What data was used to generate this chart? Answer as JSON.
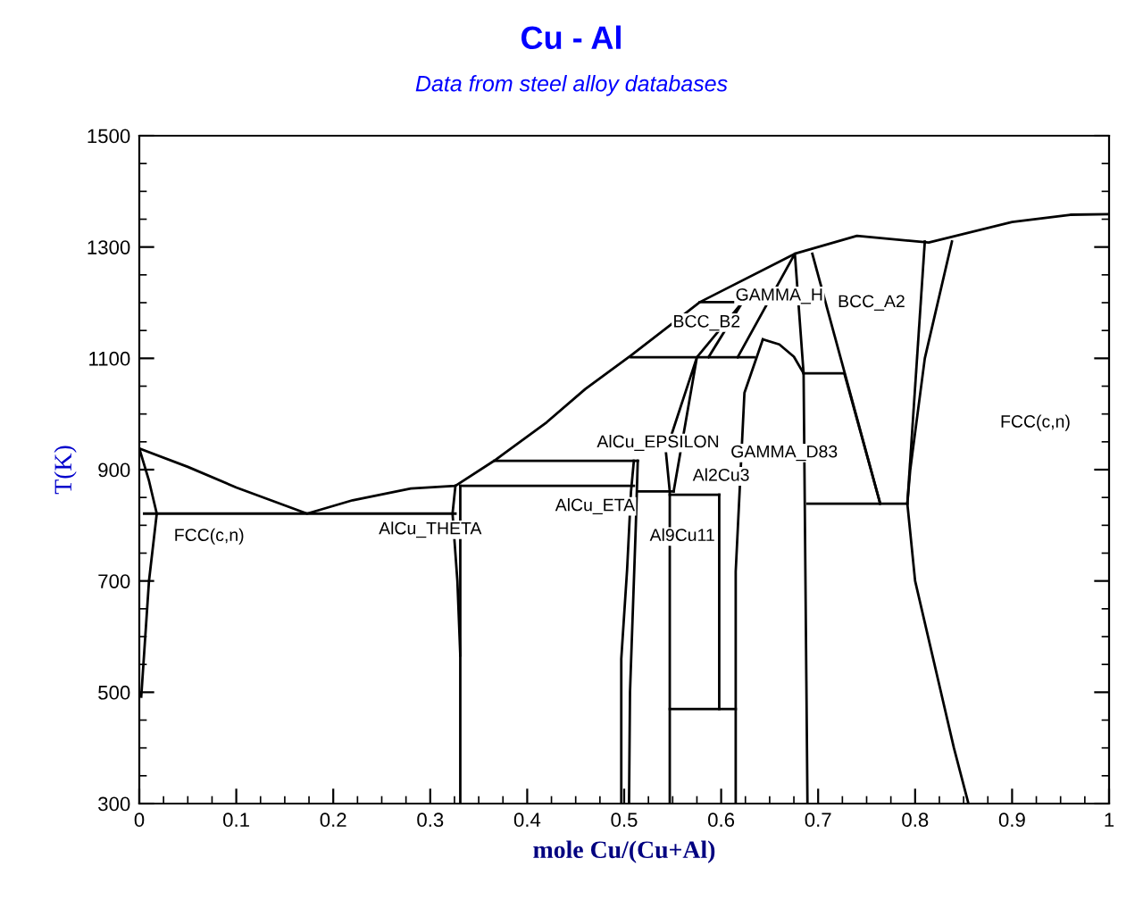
{
  "chart_data": {
    "type": "line",
    "title": "Cu - Al",
    "subtitle": "Data from steel alloy databases",
    "xlabel": "mole Cu/(Cu+Al)",
    "ylabel": "T(K)",
    "xlim": [
      0,
      1
    ],
    "xticks": [
      0,
      0.1,
      0.2,
      0.3,
      0.4,
      0.5,
      0.6,
      0.7,
      0.8,
      0.9,
      1
    ],
    "ylim": [
      300,
      1500
    ],
    "yticks": [
      300,
      500,
      700,
      900,
      1100,
      1300,
      1500
    ],
    "grid": false,
    "marker": "none",
    "line_style": "solid",
    "series": [
      {
        "color": "#000000",
        "x": [
          0,
          0.05,
          0.1,
          0.173,
          0.22,
          0.28,
          0.326,
          0.366,
          0.42,
          0.46,
          0.507,
          0.578,
          0.676,
          0.74,
          0.814,
          0.9,
          0.96,
          1
        ],
        "values": [
          938,
          905,
          868,
          821,
          845,
          866,
          871,
          916,
          985,
          1045,
          1105,
          1201,
          1288,
          1320,
          1308,
          1345,
          1358,
          1359
        ]
      },
      {
        "color": "#000000",
        "x": [
          0.005,
          0.326
        ],
        "values": [
          821,
          821
        ]
      },
      {
        "color": "#000000",
        "x": [
          0,
          0.01,
          0.018,
          0.01,
          0.002
        ],
        "values": [
          938,
          880,
          821,
          700,
          492
        ]
      },
      {
        "color": "#000000",
        "x": [
          0.326,
          0.323,
          0.328,
          0.331
        ],
        "values": [
          871,
          821,
          700,
          566
        ]
      },
      {
        "color": "#000000",
        "x": [
          0.331,
          0.331
        ],
        "values": [
          871,
          300
        ]
      },
      {
        "color": "#000000",
        "x": [
          0.331,
          0.51
        ],
        "values": [
          871,
          871
        ]
      },
      {
        "color": "#000000",
        "x": [
          0.366,
          0.514
        ],
        "values": [
          916,
          916
        ]
      },
      {
        "color": "#000000",
        "x": [
          0.497,
          0.497,
          0.503,
          0.507,
          0.51
        ],
        "values": [
          300,
          560,
          720,
          860,
          916
        ]
      },
      {
        "color": "#000000",
        "x": [
          0.514,
          0.512,
          0.508,
          0.506,
          0.505
        ],
        "values": [
          916,
          800,
          600,
          500,
          300
        ]
      },
      {
        "color": "#000000",
        "x": [
          0.514,
          0.551
        ],
        "values": [
          861,
          861
        ]
      },
      {
        "color": "#000000",
        "x": [
          0.547,
          0.547,
          0.543,
          0.575,
          0.551
        ],
        "values": [
          300,
          861,
          932,
          1102,
          861
        ]
      },
      {
        "color": "#000000",
        "x": [
          0.507,
          0.634
        ],
        "values": [
          1102,
          1102
        ]
      },
      {
        "color": "#000000",
        "x": [
          0.578,
          0.643
        ],
        "values": [
          1201,
          1201
        ]
      },
      {
        "color": "#000000",
        "x": [
          0.575,
          0.622
        ],
        "values": [
          1102,
          1201
        ]
      },
      {
        "color": "#000000",
        "x": [
          0.587,
          0.622
        ],
        "values": [
          1102,
          1201
        ]
      },
      {
        "color": "#000000",
        "x": [
          0.547,
          0.615
        ],
        "values": [
          470,
          470
        ]
      },
      {
        "color": "#000000",
        "x": [
          0.547,
          0.598
        ],
        "values": [
          855,
          855
        ]
      },
      {
        "color": "#000000",
        "x": [
          0.598,
          0.598
        ],
        "values": [
          470,
          855
        ]
      },
      {
        "color": "#000000",
        "x": [
          0.615,
          0.615,
          0.624,
          0.643
        ],
        "values": [
          300,
          717,
          1038,
          1134
        ]
      },
      {
        "color": "#000000",
        "x": [
          0.643,
          0.66,
          0.675,
          0.685
        ],
        "values": [
          1134,
          1125,
          1103,
          1073
        ]
      },
      {
        "color": "#000000",
        "x": [
          0.617,
          0.676,
          0.685,
          0.689
        ],
        "values": [
          1102,
          1288,
          1073,
          300
        ]
      },
      {
        "color": "#000000",
        "x": [
          0.685,
          0.727
        ],
        "values": [
          1073,
          1073
        ]
      },
      {
        "color": "#000000",
        "x": [
          0.727,
          0.764
        ],
        "values": [
          1073,
          839
        ]
      },
      {
        "color": "#000000",
        "x": [
          0.689,
          0.792
        ],
        "values": [
          839,
          839
        ]
      },
      {
        "color": "#000000",
        "x": [
          0.694,
          0.764
        ],
        "values": [
          1288,
          839
        ]
      },
      {
        "color": "#000000",
        "x": [
          0.81,
          0.792
        ],
        "values": [
          1310,
          839
        ]
      },
      {
        "color": "#000000",
        "x": [
          0.838,
          0.81,
          0.795,
          0.792,
          0.8,
          0.82,
          0.84,
          0.855
        ],
        "values": [
          1310,
          1100,
          900,
          839,
          700,
          550,
          400,
          300
        ]
      }
    ],
    "annotations": [
      "FCC(c,n)",
      "AlCu_THETA",
      "AlCu_ETA",
      "Al9Cu11",
      "Al2Cu3",
      "AlCu_EPSILON",
      "GAMMA_D83",
      "BCC_B2",
      "GAMMA_H",
      "BCC_A2",
      "FCC(c,n)"
    ]
  }
}
